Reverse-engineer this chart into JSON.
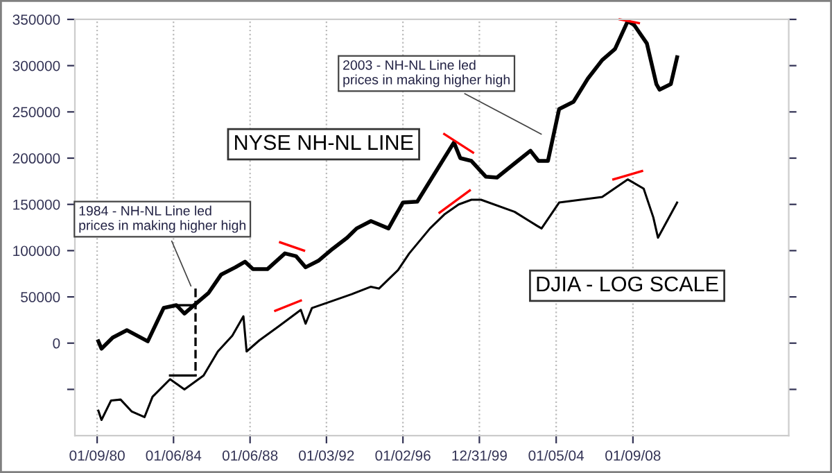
{
  "chart_data": {
    "type": "line",
    "xlim": [
      "1978-11-10",
      "2016-03-01"
    ],
    "ylim": [
      -100000,
      350000
    ],
    "xticks": [
      {
        "value": "1980-01-09",
        "label": "01/09/80"
      },
      {
        "value": "1984-01-06",
        "label": "01/06/84"
      },
      {
        "value": "1988-01-06",
        "label": "01/06/88"
      },
      {
        "value": "1992-01-03",
        "label": "01/03/92"
      },
      {
        "value": "1996-01-02",
        "label": "01/02/96"
      },
      {
        "value": "1999-12-31",
        "label": "12/31/99"
      },
      {
        "value": "2004-01-05",
        "label": "01/05/04"
      },
      {
        "value": "2008-01-09",
        "label": "01/09/08"
      }
    ],
    "yticks": [
      {
        "value": -50000,
        "label": null
      },
      0,
      50000,
      100000,
      150000,
      200000,
      250000,
      300000,
      350000
    ],
    "grid": "x",
    "legend": false,
    "marker": "none",
    "series": [
      {
        "name": "NYSE NH-NL LINE",
        "color": "#000000",
        "x": [
          "1980-02",
          "1980-04",
          "1980-11",
          "1981-08",
          "1982-09",
          "1983-07",
          "1984-03",
          "1984-08",
          "1985-02",
          "1985-11",
          "1986-07",
          "1987-04",
          "1987-10",
          "1988-03",
          "1988-12",
          "1989-11",
          "1990-06",
          "1990-12",
          "1991-08",
          "1992-05",
          "1993-02",
          "1993-08",
          "1994-05",
          "1995-04",
          "1996-01",
          "1996-10",
          "1997-12",
          "1998-09",
          "1999-01",
          "1999-08",
          "2000-05",
          "2000-12",
          "2002-01",
          "2002-09",
          "2003-02",
          "2003-08",
          "2004-03",
          "2004-12",
          "2005-09",
          "2006-06",
          "2007-02",
          "2007-10",
          "2008-02",
          "2008-10",
          "2009-04",
          "2009-06",
          "2010-01",
          "2010-05"
        ],
        "values": [
          2000,
          -6000,
          6000,
          14000,
          2000,
          38000,
          41000,
          32000,
          41000,
          54000,
          74000,
          82000,
          88000,
          80000,
          80000,
          97000,
          94000,
          82000,
          89000,
          102000,
          114000,
          124000,
          132000,
          124000,
          152000,
          153000,
          192000,
          217000,
          200000,
          197000,
          180000,
          179000,
          197000,
          208000,
          197000,
          197000,
          253000,
          261000,
          286000,
          306000,
          318000,
          348000,
          344000,
          324000,
          280000,
          274000,
          280000,
          309000
        ]
      },
      {
        "name": "DJIA - LOG SCALE",
        "color": "#000000",
        "x": [
          "1980-02",
          "1980-04",
          "1980-10",
          "1981-04",
          "1981-11",
          "1982-07",
          "1982-12",
          "1983-11",
          "1984-08",
          "1985-08",
          "1986-05",
          "1987-02",
          "1987-09",
          "1987-11",
          "1988-07",
          "1989-07",
          "1990-09",
          "1990-12",
          "1991-04",
          "1992-02",
          "1993-05",
          "1994-05",
          "1994-10",
          "1995-10",
          "1996-05",
          "1997-06",
          "1998-03",
          "1998-12",
          "1999-08",
          "2000-02",
          "2001-11",
          "2003-01",
          "2003-04",
          "2004-03",
          "2006-06",
          "2007-10",
          "2008-08",
          "2009-02",
          "2009-05",
          "2010-05"
        ],
        "values": [
          -73000,
          -83000,
          -62000,
          -61000,
          -74000,
          -80000,
          -58000,
          -39000,
          -50000,
          -35000,
          -9000,
          8000,
          29000,
          -9000,
          3000,
          18000,
          36000,
          21000,
          38000,
          44000,
          53000,
          61000,
          59000,
          79000,
          97000,
          124000,
          139000,
          150000,
          155000,
          155000,
          142000,
          127000,
          124000,
          152000,
          158000,
          177000,
          167000,
          136000,
          114000,
          152000
        ]
      },
      {
        "color": "#ff0000",
        "x": [
          "2007-05",
          "2008-05"
        ],
        "values": [
          350000,
          346000
        ]
      },
      {
        "color": "#ff0000",
        "x": [
          "1998-03",
          "1999-09"
        ],
        "values": [
          226000,
          206000
        ]
      },
      {
        "color": "#ff0000",
        "x": [
          "1989-08",
          "1990-11"
        ],
        "values": [
          109000,
          100000
        ]
      },
      {
        "color": "#ff0000",
        "x": [
          "2007-01",
          "2008-07"
        ],
        "values": [
          177000,
          186000
        ]
      },
      {
        "color": "#ff0000",
        "x": [
          "1997-12",
          "1999-07"
        ],
        "values": [
          141000,
          165000
        ]
      },
      {
        "color": "#ff0000",
        "x": [
          "1989-05",
          "1990-09"
        ],
        "values": [
          35000,
          46000
        ]
      },
      {
        "color": "#000000",
        "x": [
          "1984-03",
          "1985-03"
        ],
        "values": [
          41000,
          41000
        ]
      },
      {
        "color": "#000000",
        "x": [
          "1983-11",
          "1985-03"
        ],
        "values": [
          -35000,
          -35000
        ]
      },
      {
        "color": "#000000",
        "line_style": "dashed",
        "x": [
          "1985-03",
          "1985-03"
        ],
        "values": [
          59000,
          -35000
        ]
      }
    ],
    "annotations": [
      {
        "text": "1984 - NH-NL Line led\nprices in making higher high",
        "x": "1985-01",
        "y": 58000
      },
      {
        "text": "2003 - NH-NL Line led\nprices in making higher high",
        "x": "2003-06",
        "y": 224000
      }
    ]
  }
}
